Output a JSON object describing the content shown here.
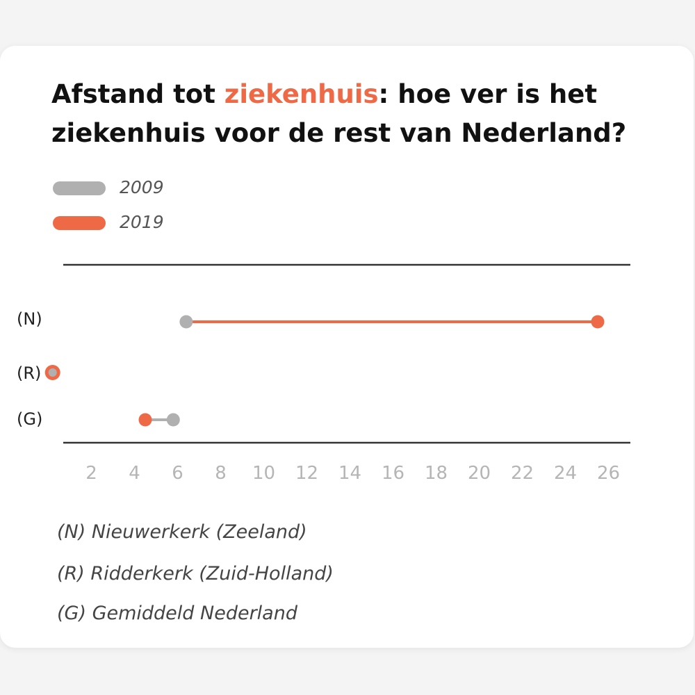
{
  "title": {
    "prefix": "Afstand tot ",
    "highlight": "ziekenhuis",
    "suffix": ": hoe ver is het ziekenhuis voor de rest van Nederland?"
  },
  "colors": {
    "2009": "#b0b0b0",
    "2019": "#ee6a47",
    "accent": "#ee6a47"
  },
  "legend": [
    {
      "label": "2009",
      "color": "#b0b0b0"
    },
    {
      "label": "2019",
      "color": "#ee6a47"
    }
  ],
  "key": [
    "(N) Nieuwerkerk (Zeeland)",
    "(R) Ridderkerk (Zuid-Holland)",
    "(G) Gemiddeld Nederland"
  ],
  "chart_data": {
    "type": "dumbbell",
    "title": "Afstand tot ziekenhuis: hoe ver is het ziekenhuis voor de rest van Nederland?",
    "categories": [
      "(N)",
      "(R)",
      "(G)"
    ],
    "series": [
      {
        "name": "2009",
        "values": [
          6.4,
          0.2,
          5.8
        ]
      },
      {
        "name": "2019",
        "values": [
          25.5,
          0.2,
          4.5
        ]
      }
    ],
    "xticks": [
      2,
      4,
      6,
      8,
      10,
      12,
      14,
      16,
      18,
      20,
      22,
      24,
      26
    ],
    "xlim": [
      0,
      26.8
    ],
    "legend_position": "top-left",
    "grid": false
  }
}
